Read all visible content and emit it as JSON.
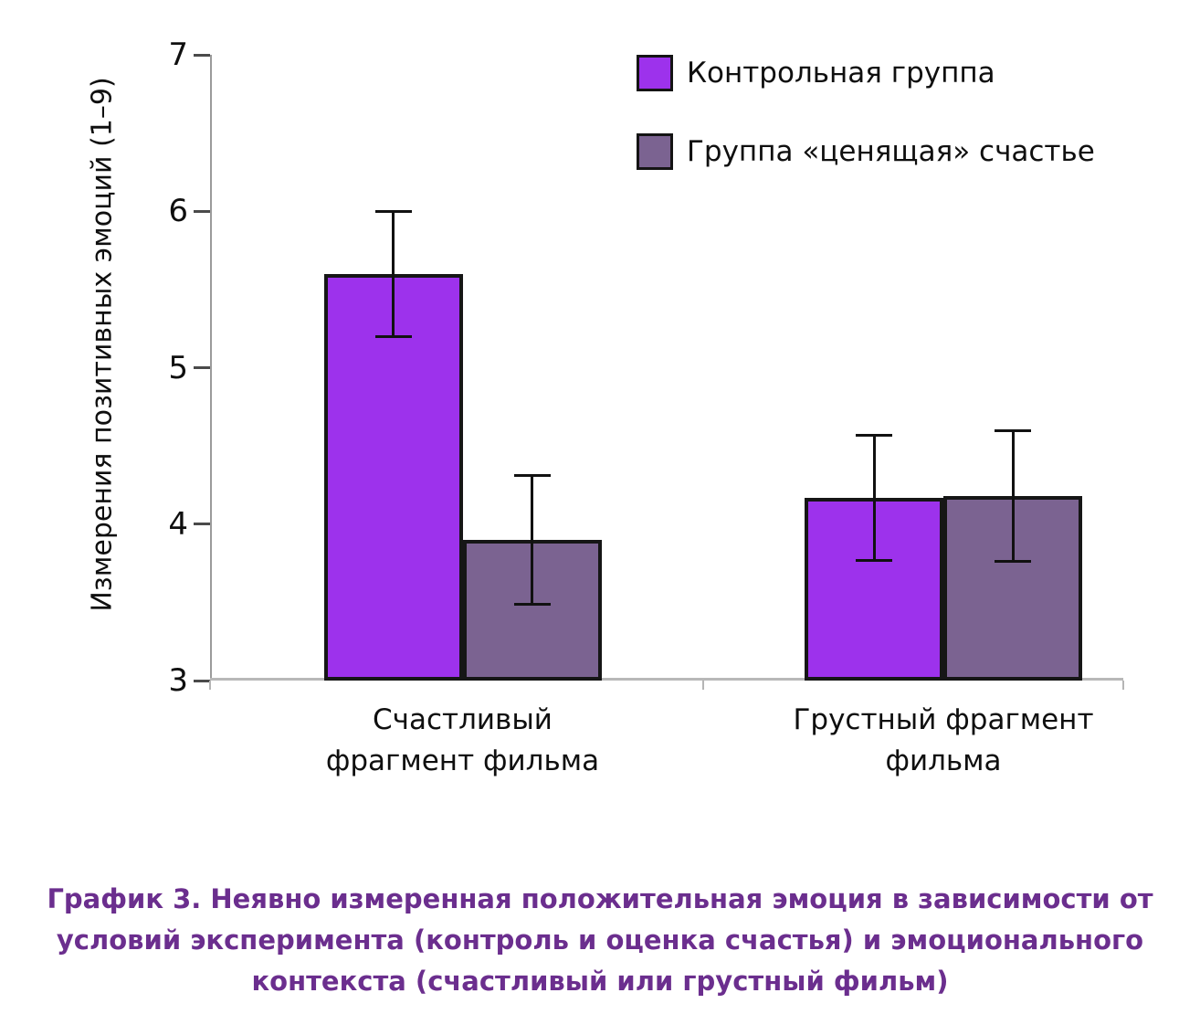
{
  "caption": {
    "text": "График 3. Неявно измеренная положительная эмоция в зависимости от условий эксперимента (контроль и оценка счастья) и эмоционального контекста (счастливый или грустный фильм)",
    "color": "#6B2E8E"
  },
  "chart_data": {
    "type": "bar",
    "title": "",
    "ylabel": "Измерения позитивных эмоций (1–9)",
    "xlabel": "",
    "ylim": [
      3,
      7
    ],
    "yticks": [
      3,
      4,
      5,
      6,
      7
    ],
    "categories": [
      [
        "Счастливый",
        "фрагмент фильма"
      ],
      [
        "Грустный фрагмент",
        "фильма"
      ]
    ],
    "series": [
      {
        "name": "Контрольная группа",
        "color": "#9D32EC",
        "values": [
          5.6,
          4.17
        ],
        "errors": [
          0.4,
          0.4
        ]
      },
      {
        "name": "Группа «ценящая» счастье",
        "color": "#7B6391",
        "values": [
          3.9,
          4.18
        ],
        "errors": [
          0.41,
          0.42
        ]
      }
    ],
    "legend_position": "top-right",
    "grid": false,
    "axis_color": "#9b9b9b",
    "tick_color": "#4a4a4a",
    "bar_border_color": "#161616",
    "error_bar_color": "#111111"
  }
}
